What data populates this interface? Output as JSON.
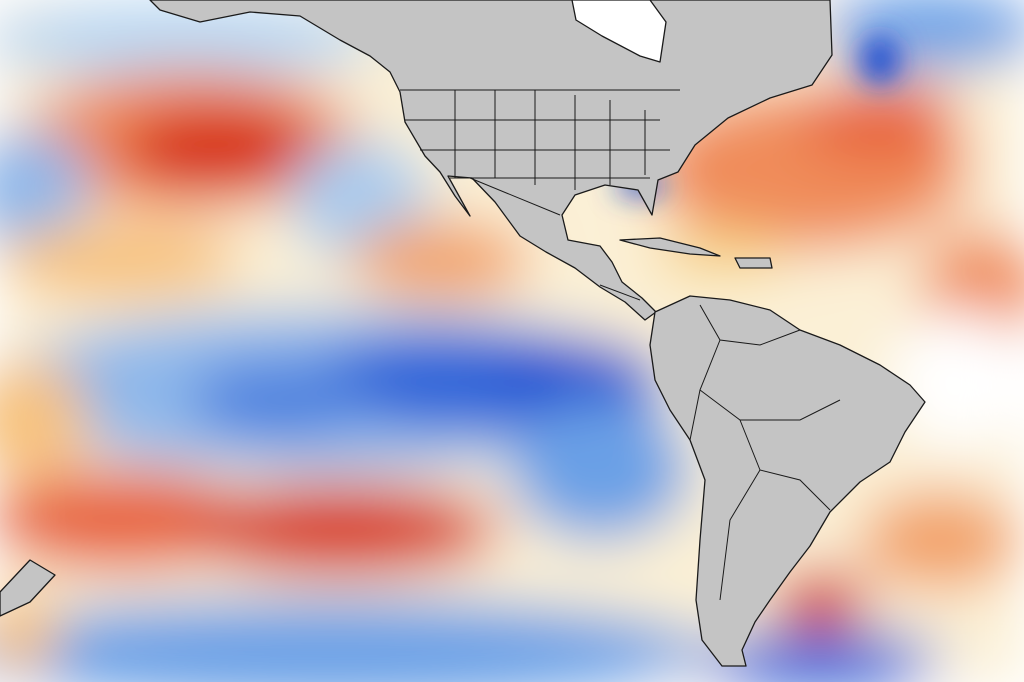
{
  "map": {
    "type": "sea-surface-temperature-anomaly",
    "colors": {
      "land": "#c4c4c4",
      "border": "#1a1a1a",
      "warm_strong": "#d7301f",
      "warm": "#f08c5a",
      "warm_light": "#f7d58a",
      "neutral": "#ffffff",
      "cool_light": "#b9d7f2",
      "cool": "#6aa0e6",
      "cool_strong": "#1f4fd1"
    }
  }
}
